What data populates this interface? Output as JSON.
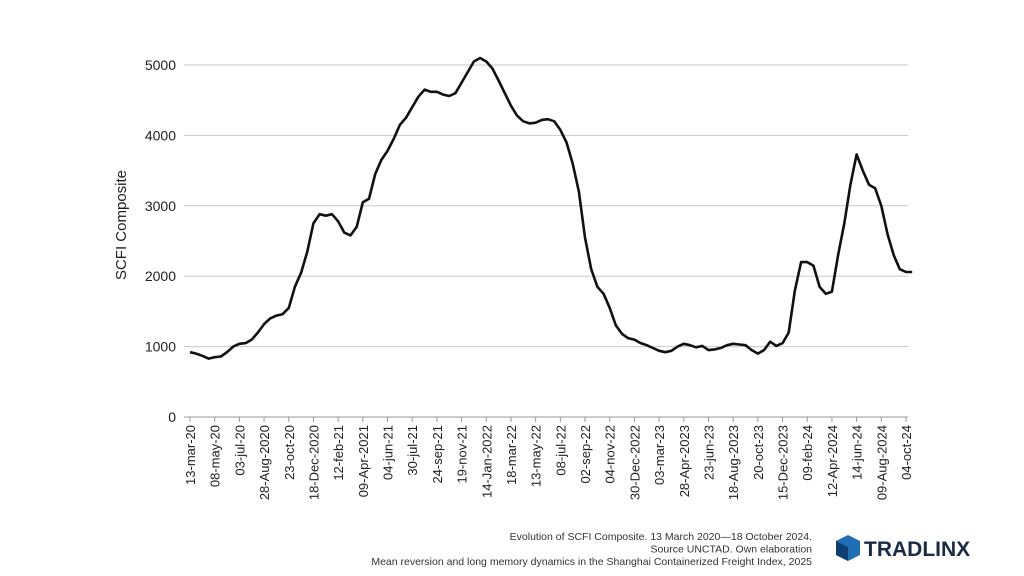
{
  "chart_data": {
    "type": "line",
    "ylabel": "SCFI Composite",
    "categories": [
      "13-mar-20",
      null,
      null,
      null,
      "08-may-20",
      null,
      null,
      null,
      "03-jul-20",
      null,
      null,
      null,
      "28-Aug-2020",
      null,
      null,
      null,
      "23-oct-20",
      null,
      null,
      null,
      "18-Dec-2020",
      null,
      null,
      null,
      "12-feb-21",
      null,
      null,
      null,
      "09-Apr-2021",
      null,
      null,
      null,
      "04-jun-21",
      null,
      null,
      null,
      "30-jul-21",
      null,
      null,
      null,
      "24-sep-21",
      null,
      null,
      null,
      "19-nov-21",
      null,
      null,
      null,
      "14-Jan-2022",
      null,
      null,
      null,
      "18-mar-22",
      null,
      null,
      null,
      "13-may-22",
      null,
      null,
      null,
      "08-jul-22",
      null,
      null,
      null,
      "02-sep-22",
      null,
      null,
      null,
      "04-nov-22",
      null,
      null,
      null,
      "30-Dec-2022",
      null,
      null,
      null,
      "03-mar-23",
      null,
      null,
      null,
      "28-Apr-2023",
      null,
      null,
      null,
      "23-jun-23",
      null,
      null,
      null,
      "18-Aug-2023",
      null,
      null,
      null,
      "20-oct-23",
      null,
      null,
      null,
      "15-Dec-2023",
      null,
      null,
      null,
      "09-feb-24",
      null,
      null,
      null,
      "12-Apr-2024",
      null,
      null,
      null,
      "14-jun-24",
      null,
      null,
      null,
      "09-Aug-2024",
      null,
      null,
      null,
      "04-oct-24",
      null
    ],
    "series": [
      {
        "name": "SCFI Composite",
        "color": "#111111",
        "values": [
          920,
          900,
          870,
          830,
          850,
          860,
          920,
          1000,
          1040,
          1050,
          1100,
          1200,
          1320,
          1400,
          1440,
          1460,
          1550,
          1850,
          2050,
          2350,
          2750,
          2880,
          2860,
          2880,
          2780,
          2620,
          2580,
          2700,
          3050,
          3100,
          3450,
          3650,
          3780,
          3950,
          4150,
          4250,
          4400,
          4550,
          4650,
          4620,
          4620,
          4580,
          4560,
          4600,
          4750,
          4900,
          5050,
          5100,
          5050,
          4950,
          4780,
          4600,
          4420,
          4280,
          4200,
          4170,
          4180,
          4220,
          4230,
          4200,
          4080,
          3900,
          3600,
          3200,
          2550,
          2100,
          1850,
          1750,
          1550,
          1300,
          1180,
          1120,
          1100,
          1050,
          1020,
          980,
          940,
          920,
          940,
          1000,
          1040,
          1020,
          990,
          1010,
          950,
          960,
          980,
          1020,
          1040,
          1030,
          1020,
          950,
          900,
          950,
          1070,
          1010,
          1050,
          1200,
          1800,
          2200,
          2200,
          2150,
          1850,
          1750,
          1780,
          2300,
          2750,
          3300,
          3730,
          3500,
          3300,
          3250,
          3000,
          2600,
          2300,
          2100,
          2060,
          2060
        ]
      }
    ],
    "ylim": [
      0,
      5000
    ],
    "yticks": [
      0,
      1000,
      2000,
      3000,
      4000,
      5000
    ],
    "grid": true,
    "caption": [
      "Evolution of SCFI Composite. 13 March 2020—18 October 2024.",
      "Source UNCTAD. Own elaboration",
      "Mean reversion and long memory dynamics in the Shanghai Containerized Freight Index, 2025"
    ]
  },
  "brand": "TRADLINX"
}
